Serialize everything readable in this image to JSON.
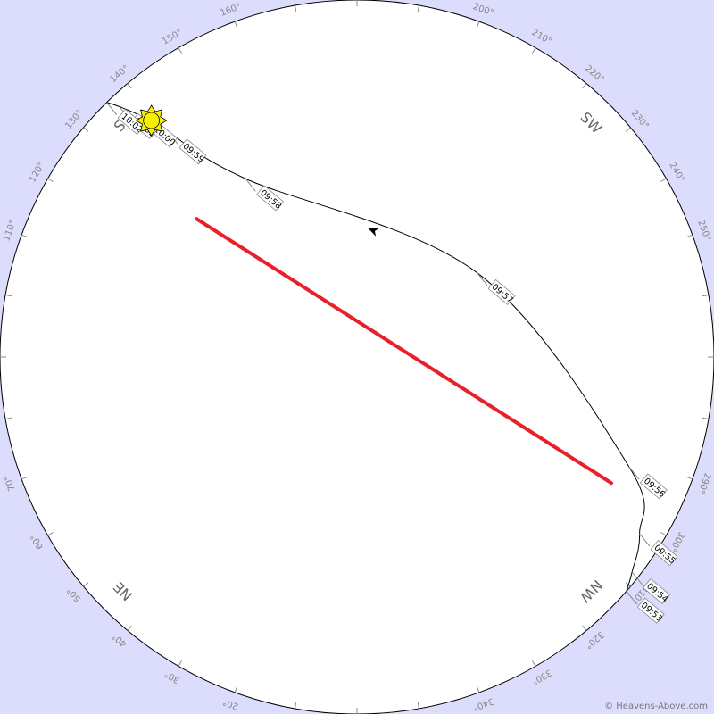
{
  "directions": [
    {
      "label": "NE",
      "az": 45
    },
    {
      "label": "NW",
      "az": 315
    },
    {
      "label": "SE",
      "az": 135
    },
    {
      "label": "SW",
      "az": 225
    }
  ],
  "azimuth_labels": [
    {
      "az": 20,
      "text": "20°"
    },
    {
      "az": 30,
      "text": "30°"
    },
    {
      "az": 40,
      "text": "40°"
    },
    {
      "az": 50,
      "text": "50°"
    },
    {
      "az": 60,
      "text": "60°"
    },
    {
      "az": 70,
      "text": "70°"
    },
    {
      "az": 110,
      "text": "110°"
    },
    {
      "az": 120,
      "text": "120°"
    },
    {
      "az": 130,
      "text": "130°"
    },
    {
      "az": 140,
      "text": "140°"
    },
    {
      "az": 150,
      "text": "150°"
    },
    {
      "az": 160,
      "text": "160°"
    },
    {
      "az": 200,
      "text": "200°"
    },
    {
      "az": 210,
      "text": "210°"
    },
    {
      "az": 220,
      "text": "220°"
    },
    {
      "az": 230,
      "text": "230°"
    },
    {
      "az": 240,
      "text": "240°"
    },
    {
      "az": 250,
      "text": "250°"
    },
    {
      "az": 290,
      "text": "290°"
    },
    {
      "az": 300,
      "text": "300°"
    },
    {
      "az": 310,
      "text": "310°"
    },
    {
      "az": 320,
      "text": "320°"
    },
    {
      "az": 330,
      "text": "330°"
    },
    {
      "az": 340,
      "text": "340°"
    }
  ],
  "track": {
    "path_color": "#000000",
    "visible_color": "#e8202a",
    "times": [
      {
        "label": "09:53",
        "az": 311,
        "alt": 0
      },
      {
        "label": "09:54",
        "az": 308,
        "alt": 2
      },
      {
        "label": "09:55",
        "az": 302,
        "alt": 6
      },
      {
        "label": "09:56",
        "az": 292,
        "alt": 16
      },
      {
        "label": "09:57",
        "az": 235,
        "alt": 53
      },
      {
        "label": "09:58",
        "az": 148,
        "alt": 37
      },
      {
        "label": "09:59",
        "az": 140,
        "alt": 16
      },
      {
        "label": "10:00",
        "az": 138,
        "alt": 8
      },
      {
        "label": "10:01",
        "az": 136.5,
        "alt": 3
      },
      {
        "label": "10:02",
        "az": 135.5,
        "alt": 0
      }
    ]
  },
  "sun": {
    "az": 139,
    "alt": 11,
    "icon": "sun-icon",
    "color": "#f5f000"
  },
  "copyright": "© Heavens-Above.com"
}
